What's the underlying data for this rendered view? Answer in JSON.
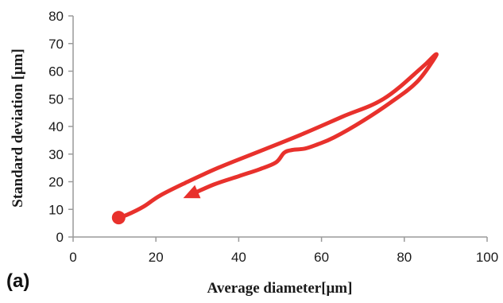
{
  "panel_label": "(a)",
  "chart_data": {
    "type": "line",
    "title": "",
    "xlabel": "Average diameter[μm]",
    "ylabel": "Standard deviation [μm]",
    "xlim": [
      0,
      100
    ],
    "ylim": [
      0,
      80
    ],
    "xticks": [
      0,
      20,
      40,
      60,
      80,
      100
    ],
    "yticks": [
      0,
      10,
      20,
      30,
      40,
      50,
      60,
      70,
      80
    ],
    "grid": false,
    "legend": "none",
    "series": [
      {
        "color": "#e8312c",
        "start_marker": "circle",
        "end_marker": "arrow",
        "x": [
          11,
          13,
          17,
          21,
          27,
          35,
          45,
          55,
          65,
          75,
          84,
          87.5,
          87,
          83,
          77,
          70,
          63,
          59,
          56,
          53,
          51,
          49,
          45,
          40,
          34,
          28
        ],
        "y": [
          7,
          8,
          11,
          15,
          19.5,
          25,
          31,
          37,
          43.5,
          50,
          61,
          66,
          64,
          56,
          49,
          42,
          36,
          33.5,
          32,
          31.5,
          30.5,
          27,
          24.5,
          22,
          19,
          15
        ]
      }
    ]
  }
}
